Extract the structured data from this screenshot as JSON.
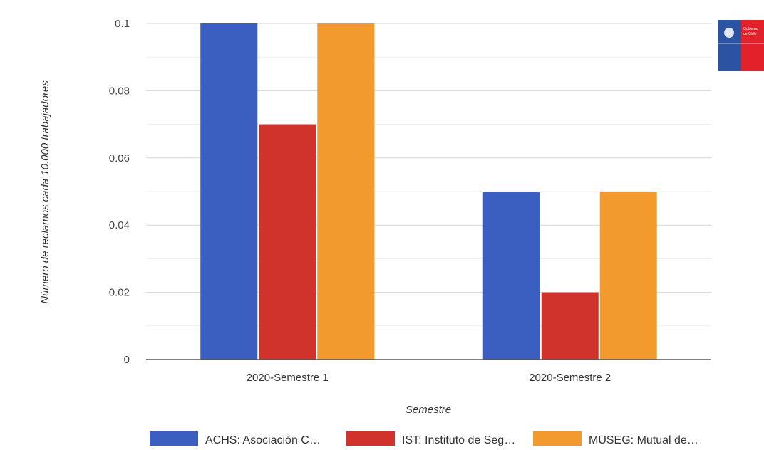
{
  "chart_data": {
    "type": "bar",
    "categories": [
      "2020-Semestre 1",
      "2020-Semestre 2"
    ],
    "series": [
      {
        "name": "ACHS: Asociación C…",
        "values": [
          0.1,
          0.05
        ],
        "color": "#3b5fc0"
      },
      {
        "name": "IST: Instituto de Seg…",
        "values": [
          0.07,
          0.02
        ],
        "color": "#d0332b"
      },
      {
        "name": "MUSEG: Mutual de…",
        "values": [
          0.1,
          0.05
        ],
        "color": "#f39a2e"
      }
    ],
    "xlabel": "Semestre",
    "ylabel": "Número de reclamos cada 10.000 trabajadores",
    "ylim": [
      0,
      0.1
    ],
    "yticks": [
      "0",
      "0.02",
      "0.04",
      "0.06",
      "0.08",
      "0.1"
    ],
    "grid": true,
    "legend_position": "bottom"
  },
  "logo": {
    "text_line1": "Gobierno",
    "text_line2": "de Chile",
    "blue": "#2a53a4",
    "red": "#e3212b"
  }
}
